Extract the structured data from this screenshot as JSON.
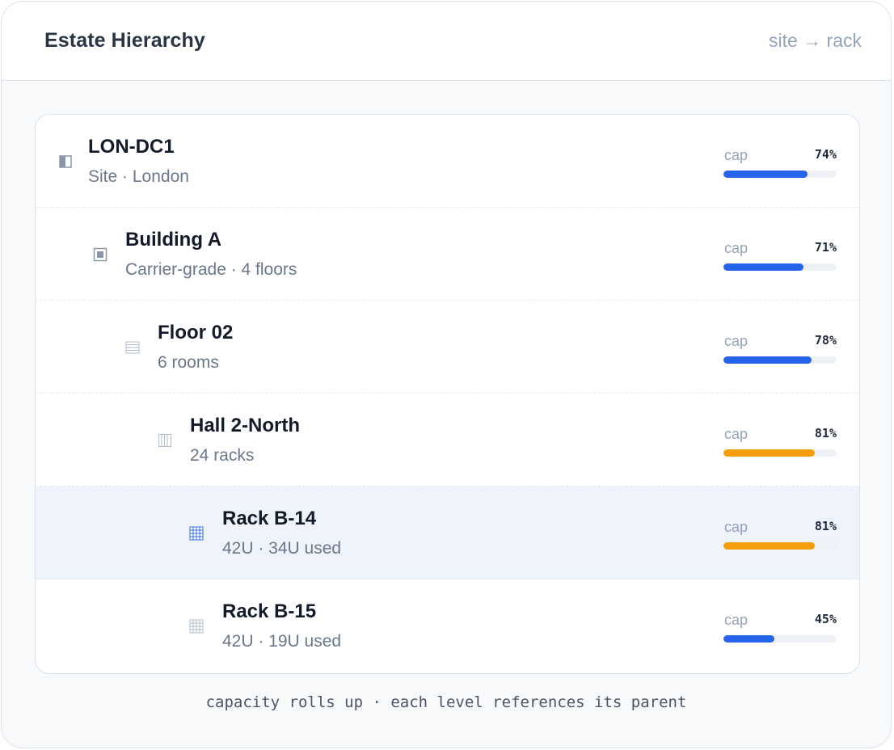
{
  "header": {
    "title": "Estate Hierarchy",
    "path": "site → rack"
  },
  "cap_label": "cap",
  "colors": {
    "normal": "#2563eb",
    "warning": "#f59e0b"
  },
  "rows": [
    {
      "name": "LON-DC1",
      "meta": "Site · London",
      "icon": "site-icon",
      "cap": 74,
      "pct": "74%",
      "status": "normal",
      "selected": false
    },
    {
      "name": "Building A",
      "meta": "Carrier-grade · 4 floors",
      "icon": "building-icon",
      "cap": 71,
      "pct": "71%",
      "status": "normal",
      "selected": false
    },
    {
      "name": "Floor 02",
      "meta": "6 rooms",
      "icon": "floor-icon",
      "cap": 78,
      "pct": "78%",
      "status": "normal",
      "selected": false
    },
    {
      "name": "Hall 2-North",
      "meta": "24 racks",
      "icon": "hall-icon",
      "cap": 81,
      "pct": "81%",
      "status": "warning",
      "selected": false
    },
    {
      "name": "Rack B-14",
      "meta": "42U · 34U used",
      "icon": "rack-icon",
      "cap": 81,
      "pct": "81%",
      "status": "warning",
      "selected": true
    },
    {
      "name": "Rack B-15",
      "meta": "42U · 19U used",
      "icon": "rack-icon",
      "cap": 45,
      "pct": "45%",
      "status": "normal",
      "selected": false
    }
  ],
  "footer": "capacity rolls up · each level references its parent"
}
